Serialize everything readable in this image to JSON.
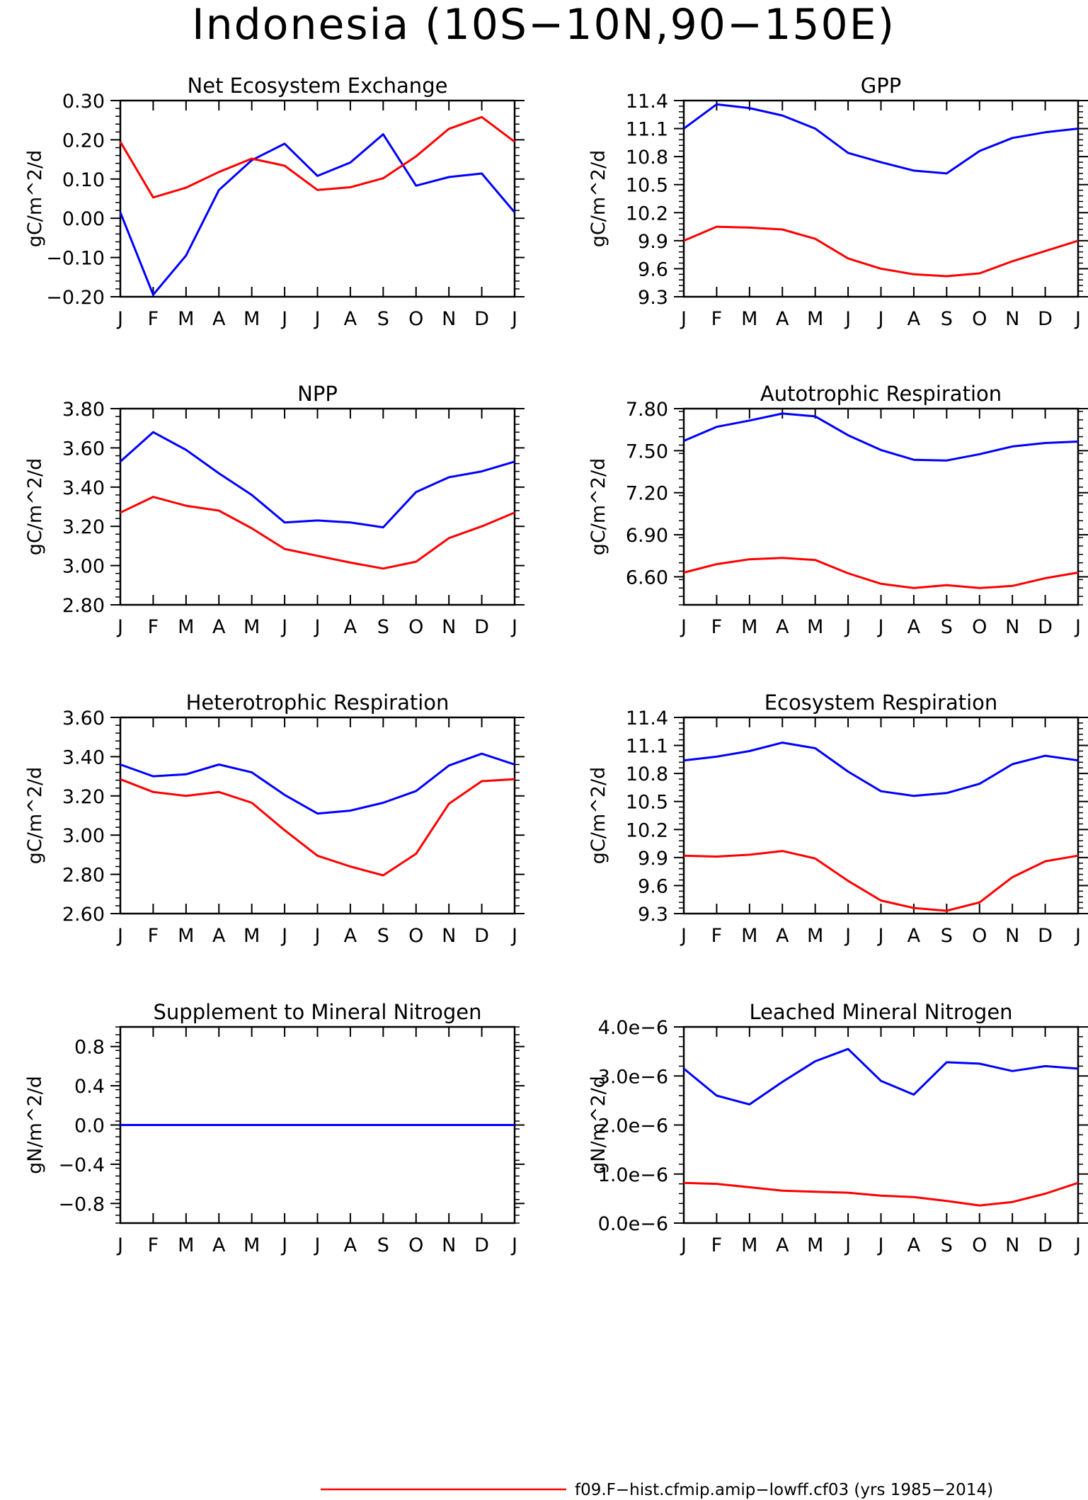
{
  "figure": {
    "title": "Indonesia (10S−10N,90−150E)"
  },
  "legend": {
    "entries": [
      {
        "label": "f09.F−hist.cfmip.amip−lowff.cf03 (yrs 1985−2014)",
        "color": "#ff0000"
      }
    ]
  },
  "colors": {
    "blue_series": "#0000ff",
    "red_series": "#ff0000"
  },
  "chart_data": [
    {
      "type": "line",
      "title": "Net Ecosystem Exchange",
      "ylabel": "gC/m^2/d",
      "categories": [
        "J",
        "F",
        "M",
        "A",
        "M",
        "J",
        "J",
        "A",
        "S",
        "O",
        "N",
        "D",
        "J"
      ],
      "ylim": [
        -0.2,
        0.3
      ],
      "yticks": [
        "0.30",
        "0.20",
        "0.10",
        "0.00",
        "−0.10",
        "−0.20"
      ],
      "series": [
        {
          "color": "#0000ff",
          "values": [
            0.015,
            -0.195,
            -0.095,
            0.072,
            0.148,
            0.19,
            0.108,
            0.142,
            0.214,
            0.083,
            0.105,
            0.114,
            0.015
          ]
        },
        {
          "color": "#ff0000",
          "values": [
            0.195,
            0.053,
            0.078,
            0.118,
            0.152,
            0.134,
            0.072,
            0.079,
            0.102,
            0.158,
            0.228,
            0.258,
            0.195
          ]
        }
      ]
    },
    {
      "type": "line",
      "title": "GPP",
      "ylabel": "gC/m^2/d",
      "categories": [
        "J",
        "F",
        "M",
        "A",
        "M",
        "J",
        "J",
        "A",
        "S",
        "O",
        "N",
        "D",
        "J"
      ],
      "ylim": [
        9.3,
        11.4
      ],
      "yticks": [
        "11.4",
        "11.1",
        "10.8",
        "10.5",
        "10.2",
        "9.9",
        "9.6",
        "9.3"
      ],
      "series": [
        {
          "color": "#0000ff",
          "values": [
            11.1,
            11.36,
            11.32,
            11.24,
            11.1,
            10.84,
            10.74,
            10.65,
            10.62,
            10.86,
            11.0,
            11.06,
            11.1
          ]
        },
        {
          "color": "#ff0000",
          "values": [
            9.9,
            10.05,
            10.04,
            10.02,
            9.92,
            9.71,
            9.6,
            9.54,
            9.52,
            9.55,
            9.68,
            9.79,
            9.9
          ]
        }
      ]
    },
    {
      "type": "line",
      "title": "NPP",
      "ylabel": "gC/m^2/d",
      "categories": [
        "J",
        "F",
        "M",
        "A",
        "M",
        "J",
        "J",
        "A",
        "S",
        "O",
        "N",
        "D",
        "J"
      ],
      "ylim": [
        2.8,
        3.8
      ],
      "yticks": [
        "3.80",
        "3.60",
        "3.40",
        "3.20",
        "3.00",
        "2.80"
      ],
      "series": [
        {
          "color": "#0000ff",
          "values": [
            3.53,
            3.68,
            3.59,
            3.47,
            3.36,
            3.22,
            3.23,
            3.22,
            3.195,
            3.375,
            3.45,
            3.48,
            3.53
          ]
        },
        {
          "color": "#ff0000",
          "values": [
            3.27,
            3.35,
            3.305,
            3.28,
            3.19,
            3.085,
            3.05,
            3.015,
            2.985,
            3.02,
            3.14,
            3.2,
            3.27
          ]
        }
      ]
    },
    {
      "type": "line",
      "title": "Autotrophic Respiration",
      "ylabel": "gC/m^2/d",
      "categories": [
        "J",
        "F",
        "M",
        "A",
        "M",
        "J",
        "J",
        "A",
        "S",
        "O",
        "N",
        "D",
        "J"
      ],
      "ylim": [
        6.4,
        7.8
      ],
      "yticks": [
        "7.80",
        "7.50",
        "7.20",
        "6.90",
        "6.60"
      ],
      "series": [
        {
          "color": "#0000ff",
          "values": [
            7.57,
            7.67,
            7.715,
            7.765,
            7.745,
            7.61,
            7.505,
            7.435,
            7.43,
            7.475,
            7.53,
            7.555,
            7.565
          ]
        },
        {
          "color": "#ff0000",
          "values": [
            6.63,
            6.69,
            6.725,
            6.735,
            6.72,
            6.625,
            6.55,
            6.52,
            6.54,
            6.52,
            6.535,
            6.59,
            6.63
          ]
        }
      ]
    },
    {
      "type": "line",
      "title": "Heterotrophic Respiration",
      "ylabel": "gC/m^2/d",
      "categories": [
        "J",
        "F",
        "M",
        "A",
        "M",
        "J",
        "J",
        "A",
        "S",
        "O",
        "N",
        "D",
        "J"
      ],
      "ylim": [
        2.6,
        3.6
      ],
      "yticks": [
        "3.60",
        "3.40",
        "3.20",
        "3.00",
        "2.80",
        "2.60"
      ],
      "series": [
        {
          "color": "#0000ff",
          "values": [
            3.36,
            3.3,
            3.31,
            3.36,
            3.32,
            3.205,
            3.11,
            3.125,
            3.165,
            3.225,
            3.355,
            3.415,
            3.36
          ]
        },
        {
          "color": "#ff0000",
          "values": [
            3.285,
            3.22,
            3.2,
            3.22,
            3.165,
            3.025,
            2.895,
            2.84,
            2.795,
            2.905,
            3.16,
            3.275,
            3.285
          ]
        }
      ]
    },
    {
      "type": "line",
      "title": "Ecosystem Respiration",
      "ylabel": "gC/m^2/d",
      "categories": [
        "J",
        "F",
        "M",
        "A",
        "M",
        "J",
        "J",
        "A",
        "S",
        "O",
        "N",
        "D",
        "J"
      ],
      "ylim": [
        9.3,
        11.4
      ],
      "yticks": [
        "11.4",
        "11.1",
        "10.8",
        "10.5",
        "10.2",
        "9.9",
        "9.6",
        "9.3"
      ],
      "series": [
        {
          "color": "#0000ff",
          "values": [
            10.94,
            10.98,
            11.04,
            11.13,
            11.07,
            10.82,
            10.61,
            10.56,
            10.59,
            10.69,
            10.9,
            10.99,
            10.94
          ]
        },
        {
          "color": "#ff0000",
          "values": [
            9.92,
            9.91,
            9.93,
            9.97,
            9.89,
            9.65,
            9.44,
            9.36,
            9.33,
            9.42,
            9.69,
            9.86,
            9.92
          ]
        }
      ]
    },
    {
      "type": "line",
      "title": "Supplement to Mineral Nitrogen",
      "ylabel": "gN/m^2/d",
      "categories": [
        "J",
        "F",
        "M",
        "A",
        "M",
        "J",
        "J",
        "A",
        "S",
        "O",
        "N",
        "D",
        "J"
      ],
      "ylim": [
        -1.0,
        1.0
      ],
      "yticks": [
        "0.8",
        "0.4",
        "0.0",
        "−0.4",
        "−0.8"
      ],
      "series": [
        {
          "color": "#0000ff",
          "values": [
            0,
            0,
            0,
            0,
            0,
            0,
            0,
            0,
            0,
            0,
            0,
            0,
            0
          ]
        }
      ]
    },
    {
      "type": "line",
      "title": "Leached Mineral Nitrogen",
      "ylabel": "gN/m^2/d",
      "categories": [
        "J",
        "F",
        "M",
        "A",
        "M",
        "J",
        "J",
        "A",
        "S",
        "O",
        "N",
        "D",
        "J"
      ],
      "ylim": [
        0.0,
        4e-06
      ],
      "yticks": [
        "4.0e−6",
        "3.0e−6",
        "2.0e−6",
        "1.0e−6",
        "0.0e−6"
      ],
      "series": [
        {
          "color": "#0000ff",
          "values": [
            3.15e-06,
            2.6e-06,
            2.42e-06,
            2.88e-06,
            3.3e-06,
            3.55e-06,
            2.9e-06,
            2.62e-06,
            3.28e-06,
            3.25e-06,
            3.1e-06,
            3.2e-06,
            3.15e-06
          ]
        },
        {
          "color": "#ff0000",
          "values": [
            8.2e-07,
            8e-07,
            7.3e-07,
            6.6e-07,
            6.4e-07,
            6.2e-07,
            5.6e-07,
            5.3e-07,
            4.5e-07,
            3.6e-07,
            4.3e-07,
            6e-07,
            8.2e-07
          ]
        }
      ]
    }
  ]
}
